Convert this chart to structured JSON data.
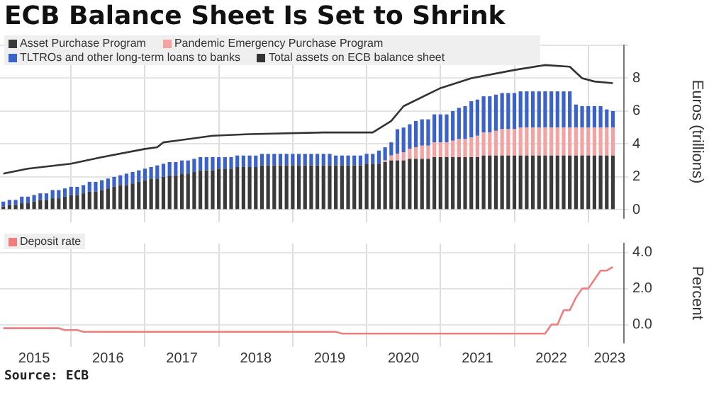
{
  "chart_data": [
    {
      "type": "bar",
      "title": "ECB Balance Sheet Is Set to Shrink",
      "ylabel": "Euros (trillions)",
      "stacked": true,
      "legend": "top left",
      "grid": true,
      "tick_labels": "y",
      "x": [
        "2015-02",
        "2015-03",
        "2015-04",
        "2015-05",
        "2015-06",
        "2015-07",
        "2015-08",
        "2015-09",
        "2015-10",
        "2015-11",
        "2015-12",
        "2016-01",
        "2016-02",
        "2016-03",
        "2016-04",
        "2016-05",
        "2016-06",
        "2016-07",
        "2016-08",
        "2016-09",
        "2016-10",
        "2016-11",
        "2016-12",
        "2017-01",
        "2017-02",
        "2017-03",
        "2017-04",
        "2017-05",
        "2017-06",
        "2017-07",
        "2017-08",
        "2017-09",
        "2017-10",
        "2017-11",
        "2017-12",
        "2018-01",
        "2018-02",
        "2018-03",
        "2018-04",
        "2018-05",
        "2018-06",
        "2018-07",
        "2018-08",
        "2018-09",
        "2018-10",
        "2018-11",
        "2018-12",
        "2019-01",
        "2019-02",
        "2019-03",
        "2019-04",
        "2019-05",
        "2019-06",
        "2019-07",
        "2019-08",
        "2019-09",
        "2019-10",
        "2019-11",
        "2019-12",
        "2020-01",
        "2020-02",
        "2020-03",
        "2020-04",
        "2020-05",
        "2020-06",
        "2020-07",
        "2020-08",
        "2020-09",
        "2020-10",
        "2020-11",
        "2020-12",
        "2021-01",
        "2021-02",
        "2021-03",
        "2021-04",
        "2021-05",
        "2021-06",
        "2021-07",
        "2021-08",
        "2021-09",
        "2021-10",
        "2021-11",
        "2021-12",
        "2022-01",
        "2022-02",
        "2022-03",
        "2022-04",
        "2022-05",
        "2022-06",
        "2022-07",
        "2022-08",
        "2022-09",
        "2022-10",
        "2022-11",
        "2022-12",
        "2023-01",
        "2023-02",
        "2023-03",
        "2023-04",
        "2023-05"
      ],
      "xlim": [
        "2015-01-15",
        "2023-06-25"
      ],
      "xticks": [
        {
          "value": "2016",
          "label": null
        },
        {
          "value": "2017",
          "label": null
        },
        {
          "value": "2018",
          "label": null
        },
        {
          "value": "2019",
          "label": null
        },
        {
          "value": "2020",
          "label": null
        },
        {
          "value": "2021",
          "label": null
        },
        {
          "value": "2022",
          "label": null
        },
        {
          "value": "2023",
          "label": null
        }
      ],
      "ylim": [
        -0.5,
        10
      ],
      "yticks": [
        0,
        2,
        4,
        6,
        8,
        {
          "value": 10,
          "label": null
        }
      ],
      "series": [
        {
          "name": "Asset Purchase Program",
          "color": "#3a3a3a",
          "values": [
            0.2,
            0.3,
            0.3,
            0.4,
            0.4,
            0.5,
            0.6,
            0.6,
            0.7,
            0.7,
            0.8,
            0.9,
            0.9,
            1.0,
            1.1,
            1.1,
            1.2,
            1.3,
            1.4,
            1.5,
            1.5,
            1.6,
            1.7,
            1.8,
            1.9,
            1.9,
            2.0,
            2.1,
            2.1,
            2.2,
            2.2,
            2.3,
            2.4,
            2.4,
            2.4,
            2.5,
            2.5,
            2.5,
            2.6,
            2.6,
            2.6,
            2.6,
            2.7,
            2.7,
            2.7,
            2.7,
            2.7,
            2.7,
            2.7,
            2.7,
            2.7,
            2.7,
            2.7,
            2.7,
            2.7,
            2.7,
            2.7,
            2.7,
            2.7,
            2.8,
            2.8,
            2.8,
            2.9,
            3.0,
            3.0,
            3.0,
            3.1,
            3.1,
            3.1,
            3.1,
            3.2,
            3.2,
            3.2,
            3.2,
            3.2,
            3.2,
            3.2,
            3.2,
            3.3,
            3.3,
            3.3,
            3.3,
            3.3,
            3.3,
            3.3,
            3.3,
            3.3,
            3.3,
            3.3,
            3.3,
            3.3,
            3.3,
            3.3,
            3.3,
            3.3,
            3.3,
            3.3,
            3.3,
            3.3,
            3.3
          ]
        },
        {
          "name": "Pandemic Emergency Purchase Program",
          "color": "#f4a3a3",
          "values": [
            0,
            0,
            0,
            0,
            0,
            0,
            0,
            0,
            0,
            0,
            0,
            0,
            0,
            0,
            0,
            0,
            0,
            0,
            0,
            0,
            0,
            0,
            0,
            0,
            0,
            0,
            0,
            0,
            0,
            0,
            0,
            0,
            0,
            0,
            0,
            0,
            0,
            0,
            0,
            0,
            0,
            0,
            0,
            0,
            0,
            0,
            0,
            0,
            0,
            0,
            0,
            0,
            0,
            0,
            0,
            0,
            0,
            0,
            0,
            0,
            0,
            0,
            0.1,
            0.3,
            0.4,
            0.5,
            0.6,
            0.7,
            0.8,
            0.8,
            0.9,
            0.9,
            0.9,
            1.0,
            1.1,
            1.1,
            1.2,
            1.3,
            1.4,
            1.4,
            1.5,
            1.6,
            1.6,
            1.6,
            1.7,
            1.7,
            1.7,
            1.7,
            1.7,
            1.7,
            1.7,
            1.7,
            1.7,
            1.7,
            1.7,
            1.7,
            1.7,
            1.7,
            1.7,
            1.7
          ]
        },
        {
          "name": "TLTROs and other long-term loans to banks",
          "color": "#3a62c8",
          "values": [
            0.3,
            0.3,
            0.3,
            0.4,
            0.4,
            0.4,
            0.4,
            0.4,
            0.5,
            0.5,
            0.5,
            0.5,
            0.5,
            0.5,
            0.6,
            0.6,
            0.6,
            0.6,
            0.6,
            0.6,
            0.7,
            0.7,
            0.7,
            0.7,
            0.7,
            0.8,
            0.8,
            0.8,
            0.8,
            0.8,
            0.8,
            0.8,
            0.8,
            0.8,
            0.8,
            0.7,
            0.7,
            0.7,
            0.7,
            0.7,
            0.7,
            0.7,
            0.7,
            0.7,
            0.7,
            0.7,
            0.7,
            0.7,
            0.7,
            0.7,
            0.7,
            0.7,
            0.7,
            0.7,
            0.6,
            0.6,
            0.6,
            0.6,
            0.6,
            0.6,
            0.6,
            0.8,
            0.8,
            0.8,
            1.5,
            1.5,
            1.5,
            1.6,
            1.6,
            1.6,
            1.7,
            1.7,
            1.7,
            1.8,
            1.9,
            2.0,
            2.2,
            2.2,
            2.2,
            2.2,
            2.2,
            2.2,
            2.2,
            2.2,
            2.2,
            2.2,
            2.2,
            2.2,
            2.2,
            2.2,
            2.2,
            2.2,
            2.2,
            1.4,
            1.3,
            1.3,
            1.3,
            1.3,
            1.1,
            1.0
          ]
        },
        {
          "name": "Total assets on ECB balance sheet",
          "type": "line",
          "color": "#333333",
          "x": [
            "2015-02",
            "2015-06",
            "2016-01",
            "2016-06",
            "2017-01",
            "2017-03",
            "2017-04",
            "2017-12",
            "2018-06",
            "2019-06",
            "2020-02",
            "2020-05",
            "2020-07",
            "2021-01",
            "2021-06",
            "2022-01",
            "2022-06",
            "2022-10",
            "2022-12",
            "2023-02",
            "2023-05"
          ],
          "values": [
            2.2,
            2.5,
            2.8,
            3.2,
            3.7,
            3.8,
            4.1,
            4.5,
            4.6,
            4.7,
            4.7,
            5.4,
            6.3,
            7.4,
            8.0,
            8.5,
            8.8,
            8.7,
            8.0,
            7.8,
            7.7
          ]
        }
      ]
    },
    {
      "type": "line",
      "ylabel": "Percent",
      "legend": "top left",
      "grid": true,
      "xlim": [
        "2015-01-15",
        "2023-06-25"
      ],
      "xticks": [
        {
          "value": "2015-07-01",
          "label": "2015"
        },
        {
          "value": "2016",
          "label": null
        },
        {
          "value": "2016-07-01",
          "label": "2016"
        },
        {
          "value": "2017",
          "label": null
        },
        {
          "value": "2017-07-01",
          "label": "2017"
        },
        {
          "value": "2018",
          "label": null
        },
        {
          "value": "2018-07-01",
          "label": "2018"
        },
        {
          "value": "2019",
          "label": null
        },
        {
          "value": "2019-07-01",
          "label": "2019"
        },
        {
          "value": "2020",
          "label": null
        },
        {
          "value": "2020-07-01",
          "label": "2020"
        },
        {
          "value": "2021",
          "label": null
        },
        {
          "value": "2021-07-01",
          "label": "2021"
        },
        {
          "value": "2022",
          "label": null
        },
        {
          "value": "2022-07-01",
          "label": "2022"
        },
        {
          "value": "2023",
          "label": null
        },
        {
          "value": "2023-04-15",
          "label": "2023"
        }
      ],
      "ylim": [
        -1,
        4.5
      ],
      "yticks": [
        {
          "value": 0,
          "label": "0.0"
        },
        {
          "value": 2,
          "label": "2.0"
        },
        {
          "value": 4,
          "label": "4.0"
        }
      ],
      "x": [
        "2015-02",
        "2015-11",
        "2015-12",
        "2016-02",
        "2016-03",
        "2019-08",
        "2019-09",
        "2022-06",
        "2022-07",
        "2022-08",
        "2022-09",
        "2022-10",
        "2022-11",
        "2022-12",
        "2023-01",
        "2023-02",
        "2023-03",
        "2023-04",
        "2023-05"
      ],
      "series": [
        {
          "name": "Deposit rate",
          "color": "#ef7f7f",
          "values": [
            -0.2,
            -0.2,
            -0.3,
            -0.3,
            -0.4,
            -0.4,
            -0.5,
            -0.5,
            0,
            0,
            0.8,
            0.8,
            1.5,
            2.0,
            2.0,
            2.5,
            3.0,
            3.0,
            3.2
          ]
        }
      ],
      "annotations": [
        "Source: ECB"
      ]
    }
  ]
}
